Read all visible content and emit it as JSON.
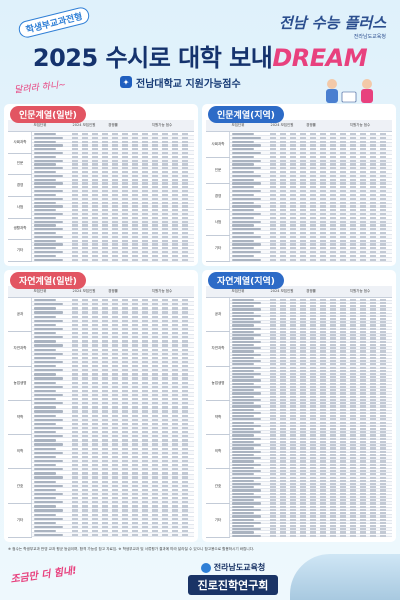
{
  "header": {
    "badge": "학생부교과전형",
    "title_main": "2025 수시로 대학 보내",
    "title_accent": "DREAM",
    "subtitle": "전남대학교 지원가능점수",
    "subtitle_icon": "jnu-logo-icon",
    "deco_left": "달려라 하니~",
    "brand_main": "전남 수능 플러스",
    "brand_sub": "전라남도교육청"
  },
  "sections": [
    {
      "title": "인문계열(일반)",
      "color": "#e25562",
      "groups": [
        "사회과학",
        "인문",
        "경영",
        "사범",
        "생활과학",
        "기타"
      ],
      "row_count": 34
    },
    {
      "title": "인문계열(지역)",
      "color": "#2d6bc7",
      "groups": [
        "사회과학",
        "인문",
        "경영",
        "사범",
        "기타"
      ],
      "row_count": 34
    },
    {
      "title": "자연계열(일반)",
      "color": "#e25562",
      "groups": [
        "공과",
        "자연과학",
        "농업생명",
        "약학",
        "의학",
        "간호",
        "기타"
      ],
      "row_count": 58
    },
    {
      "title": "자연계열(지역)",
      "color": "#2d6bc7",
      "groups": [
        "공과",
        "자연과학",
        "농업생명",
        "약학",
        "의학",
        "간호",
        "기타"
      ],
      "row_count": 74
    }
  ],
  "table_headers": [
    "모집단위",
    "2024 모집인원",
    "경쟁률",
    "지원가능 점수",
    "2022",
    "2023",
    "2024"
  ],
  "footnote": "※ 점수는 학생부교과 반영 교과 평균 등급이며, 합격 가능성 참고 자료임. ※ 학생부교과 및 서류평가 결과에 따라 달라질 수 있으니 참고용으로 활용하시기 바랍니다.",
  "footer": {
    "deco": "조금만 더 힘내!",
    "org_main": "전라남도교육청",
    "org_sub": "진로진학연구회"
  }
}
